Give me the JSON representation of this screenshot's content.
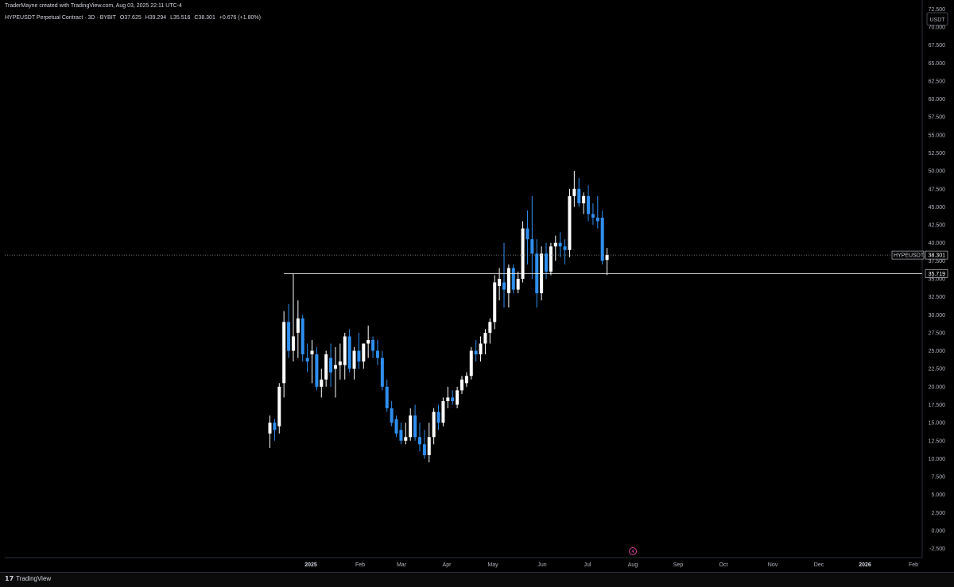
{
  "header": {
    "attribution": "TraderMayne created with TradingView.com, Aug 03, 2025 22:11 UTC-4",
    "symbol": "HYPEUSDT Perpetual Contract · 3D · BYBIT",
    "open": "O37.625",
    "high": "H39.294",
    "low": "L35.516",
    "close": "C38.301",
    "change": "+0.676 (+1.80%)"
  },
  "price_axis": {
    "currency": "USDT",
    "ticks": [
      "72.500",
      "70.000",
      "67.500",
      "65.000",
      "62.500",
      "60.000",
      "57.500",
      "55.000",
      "52.500",
      "50.000",
      "47.500",
      "45.000",
      "42.500",
      "40.000",
      "37.500",
      "35.000",
      "32.500",
      "30.000",
      "27.500",
      "25.000",
      "22.500",
      "20.000",
      "17.500",
      "15.000",
      "12.500",
      "10.000",
      "7.500",
      "5.000",
      "2.500",
      "0.000",
      "-2.500"
    ]
  },
  "time_axis": {
    "labels": [
      "2025",
      "Feb",
      "Mar",
      "Apr",
      "May",
      "Jun",
      "Jul",
      "Aug",
      "Sep",
      "Oct",
      "Nov",
      "Dec",
      "2026",
      "Feb"
    ]
  },
  "labels": {
    "current_symbol": "HYPEUSDT.P",
    "current_price": "38.301",
    "level_price": "35.719"
  },
  "footer": {
    "brand": "TradingView",
    "logo_glyph": "17"
  },
  "colors": {
    "up": "#ffffff",
    "down": "#2f8ff0",
    "background": "#000000",
    "level_line": "#ffffff",
    "accent_icon": "#e040a0"
  },
  "chart_data": {
    "type": "candlestick",
    "timeframe": "3D",
    "ylim": [
      -3.75,
      73.75
    ],
    "level": 35.719,
    "last_price": 38.301,
    "candles": [
      {
        "o": 13.5,
        "h": 16.0,
        "l": 11.5,
        "c": 15.0
      },
      {
        "o": 15.0,
        "h": 15.5,
        "l": 12.5,
        "c": 14.0
      },
      {
        "o": 14.5,
        "h": 20.5,
        "l": 13.5,
        "c": 20.0
      },
      {
        "o": 20.5,
        "h": 30.5,
        "l": 18.5,
        "c": 29.0
      },
      {
        "o": 29.0,
        "h": 31.5,
        "l": 24.0,
        "c": 25.0
      },
      {
        "o": 25.0,
        "h": 35.7,
        "l": 23.5,
        "c": 27.0
      },
      {
        "o": 27.5,
        "h": 32.0,
        "l": 24.0,
        "c": 29.5
      },
      {
        "o": 29.5,
        "h": 30.0,
        "l": 23.5,
        "c": 24.5
      },
      {
        "o": 24.0,
        "h": 26.0,
        "l": 22.0,
        "c": 23.5
      },
      {
        "o": 24.5,
        "h": 26.5,
        "l": 20.5,
        "c": 25.0
      },
      {
        "o": 24.5,
        "h": 25.5,
        "l": 19.5,
        "c": 20.0
      },
      {
        "o": 20.0,
        "h": 22.5,
        "l": 18.5,
        "c": 21.0
      },
      {
        "o": 21.0,
        "h": 25.0,
        "l": 20.0,
        "c": 24.5
      },
      {
        "o": 24.0,
        "h": 26.0,
        "l": 20.0,
        "c": 22.0
      },
      {
        "o": 22.5,
        "h": 25.5,
        "l": 18.5,
        "c": 23.0
      },
      {
        "o": 23.0,
        "h": 26.0,
        "l": 21.0,
        "c": 23.5
      },
      {
        "o": 23.0,
        "h": 27.5,
        "l": 21.0,
        "c": 27.0
      },
      {
        "o": 27.0,
        "h": 28.0,
        "l": 22.0,
        "c": 22.5
      },
      {
        "o": 22.5,
        "h": 25.5,
        "l": 21.0,
        "c": 25.0
      },
      {
        "o": 25.0,
        "h": 27.5,
        "l": 22.5,
        "c": 23.5
      },
      {
        "o": 23.5,
        "h": 26.0,
        "l": 22.5,
        "c": 26.0
      },
      {
        "o": 26.0,
        "h": 28.5,
        "l": 24.0,
        "c": 26.5
      },
      {
        "o": 26.5,
        "h": 27.0,
        "l": 24.0,
        "c": 25.0
      },
      {
        "o": 25.0,
        "h": 26.5,
        "l": 23.0,
        "c": 24.0
      },
      {
        "o": 24.0,
        "h": 25.0,
        "l": 19.5,
        "c": 20.0
      },
      {
        "o": 20.0,
        "h": 21.0,
        "l": 16.5,
        "c": 17.0
      },
      {
        "o": 17.0,
        "h": 18.0,
        "l": 14.5,
        "c": 15.0
      },
      {
        "o": 15.5,
        "h": 16.0,
        "l": 13.0,
        "c": 13.5
      },
      {
        "o": 14.0,
        "h": 15.0,
        "l": 12.0,
        "c": 12.5
      },
      {
        "o": 12.5,
        "h": 15.0,
        "l": 12.0,
        "c": 13.0
      },
      {
        "o": 13.0,
        "h": 17.0,
        "l": 12.5,
        "c": 16.0
      },
      {
        "o": 16.0,
        "h": 17.5,
        "l": 12.5,
        "c": 13.0
      },
      {
        "o": 13.0,
        "h": 15.0,
        "l": 11.0,
        "c": 12.0
      },
      {
        "o": 12.0,
        "h": 14.0,
        "l": 10.0,
        "c": 10.5
      },
      {
        "o": 10.5,
        "h": 15.0,
        "l": 9.5,
        "c": 13.0
      },
      {
        "o": 13.0,
        "h": 17.0,
        "l": 12.0,
        "c": 16.5
      },
      {
        "o": 16.5,
        "h": 17.5,
        "l": 14.0,
        "c": 15.0
      },
      {
        "o": 15.0,
        "h": 18.5,
        "l": 14.5,
        "c": 18.0
      },
      {
        "o": 18.0,
        "h": 20.0,
        "l": 17.0,
        "c": 18.5
      },
      {
        "o": 18.5,
        "h": 19.5,
        "l": 17.5,
        "c": 18.0
      },
      {
        "o": 17.5,
        "h": 20.0,
        "l": 17.0,
        "c": 19.5
      },
      {
        "o": 19.5,
        "h": 21.5,
        "l": 19.0,
        "c": 21.0
      },
      {
        "o": 20.5,
        "h": 22.0,
        "l": 20.0,
        "c": 21.5
      },
      {
        "o": 21.5,
        "h": 25.5,
        "l": 21.0,
        "c": 25.0
      },
      {
        "o": 25.0,
        "h": 26.5,
        "l": 23.5,
        "c": 24.5
      },
      {
        "o": 24.5,
        "h": 27.0,
        "l": 23.5,
        "c": 26.0
      },
      {
        "o": 26.0,
        "h": 28.0,
        "l": 24.5,
        "c": 27.5
      },
      {
        "o": 27.5,
        "h": 29.5,
        "l": 26.0,
        "c": 29.0
      },
      {
        "o": 29.0,
        "h": 35.5,
        "l": 28.0,
        "c": 34.5
      },
      {
        "o": 34.0,
        "h": 36.5,
        "l": 32.0,
        "c": 35.0
      },
      {
        "o": 34.5,
        "h": 40.0,
        "l": 31.0,
        "c": 33.5
      },
      {
        "o": 33.0,
        "h": 37.0,
        "l": 31.0,
        "c": 36.5
      },
      {
        "o": 36.5,
        "h": 37.0,
        "l": 33.0,
        "c": 33.5
      },
      {
        "o": 33.5,
        "h": 36.0,
        "l": 33.0,
        "c": 35.0
      },
      {
        "o": 35.0,
        "h": 43.0,
        "l": 34.5,
        "c": 42.0
      },
      {
        "o": 42.0,
        "h": 44.5,
        "l": 37.0,
        "c": 40.5
      },
      {
        "o": 40.5,
        "h": 46.5,
        "l": 35.0,
        "c": 38.5
      },
      {
        "o": 38.5,
        "h": 40.5,
        "l": 31.0,
        "c": 33.0
      },
      {
        "o": 33.0,
        "h": 39.5,
        "l": 32.0,
        "c": 38.5
      },
      {
        "o": 38.5,
        "h": 40.0,
        "l": 35.0,
        "c": 36.0
      },
      {
        "o": 36.0,
        "h": 40.0,
        "l": 35.5,
        "c": 39.5
      },
      {
        "o": 39.5,
        "h": 41.0,
        "l": 37.5,
        "c": 40.0
      },
      {
        "o": 40.0,
        "h": 41.5,
        "l": 38.0,
        "c": 39.5
      },
      {
        "o": 39.5,
        "h": 40.5,
        "l": 37.0,
        "c": 39.0
      },
      {
        "o": 39.0,
        "h": 47.5,
        "l": 38.0,
        "c": 46.5
      },
      {
        "o": 46.5,
        "h": 50.0,
        "l": 45.0,
        "c": 47.5
      },
      {
        "o": 47.5,
        "h": 49.0,
        "l": 45.0,
        "c": 45.5
      },
      {
        "o": 45.5,
        "h": 47.0,
        "l": 44.0,
        "c": 46.5
      },
      {
        "o": 46.5,
        "h": 48.0,
        "l": 43.0,
        "c": 44.0
      },
      {
        "o": 44.0,
        "h": 45.5,
        "l": 42.5,
        "c": 43.5
      },
      {
        "o": 43.5,
        "h": 46.5,
        "l": 42.0,
        "c": 43.0
      },
      {
        "o": 43.5,
        "h": 44.5,
        "l": 37.0,
        "c": 37.5
      },
      {
        "o": 37.625,
        "h": 39.294,
        "l": 35.516,
        "c": 38.301
      }
    ]
  }
}
